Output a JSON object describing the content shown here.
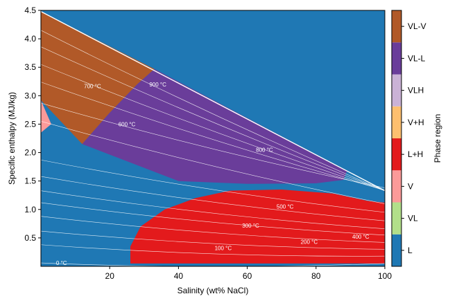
{
  "chart_data": {
    "type": "heatmap",
    "xlabel": "Salinity (wt% NaCl)",
    "ylabel": "Specific enthalpy (MJ/kg)",
    "xlim": [
      0,
      100
    ],
    "ylim": [
      0,
      4.5
    ],
    "xticks": [
      "20",
      "40",
      "60",
      "80",
      "100"
    ],
    "xtick_values": [
      20,
      40,
      60,
      80,
      100
    ],
    "yticks": [
      "0.5",
      "1.0",
      "1.5",
      "2.0",
      "2.5",
      "3.0",
      "3.5",
      "4.0",
      "4.5"
    ],
    "ytick_values": [
      0.5,
      1.0,
      1.5,
      2.0,
      2.5,
      3.0,
      3.5,
      4.0,
      4.5
    ],
    "colorbar": {
      "label": "Phase region",
      "categories": [
        {
          "name": "L",
          "color": "#1f78b4"
        },
        {
          "name": "VL",
          "color": "#b2df8a"
        },
        {
          "name": "V",
          "color": "#fb9a99"
        },
        {
          "name": "L+H",
          "color": "#e31a1c"
        },
        {
          "name": "V+H",
          "color": "#fdbf6f"
        },
        {
          "name": "VLH",
          "color": "#cab2d6"
        },
        {
          "name": "VL-L",
          "color": "#6a3d9a"
        },
        {
          "name": "VL-V",
          "color": "#b15928"
        }
      ]
    },
    "regions": [
      {
        "phase": "VL-V",
        "color": "#b15928",
        "boundary": [
          [
            0,
            4.48
          ],
          [
            33,
            3.47
          ],
          [
            28,
            3.2
          ],
          [
            20,
            2.7
          ],
          [
            12,
            2.15
          ],
          [
            0,
            2.92
          ]
        ]
      },
      {
        "phase": "VL-L",
        "color": "#6a3d9a",
        "boundary": [
          [
            33,
            3.47
          ],
          [
            89,
            1.68
          ],
          [
            88,
            1.52
          ],
          [
            80,
            1.46
          ],
          [
            60,
            1.45
          ],
          [
            40,
            1.5
          ],
          [
            12,
            2.15
          ],
          [
            20,
            2.7
          ],
          [
            28,
            3.2
          ]
        ]
      },
      {
        "phase": "V",
        "color": "#fb9a99",
        "boundary": [
          [
            0,
            2.92
          ],
          [
            3,
            2.5
          ],
          [
            0,
            2.35
          ]
        ]
      },
      {
        "phase": "L+H",
        "color": "#e31a1c",
        "boundary": [
          [
            26,
            0.05
          ],
          [
            100,
            0.05
          ],
          [
            100,
            1.12
          ],
          [
            95,
            1.15
          ],
          [
            85,
            1.28
          ],
          [
            70,
            1.35
          ],
          [
            55,
            1.33
          ],
          [
            45,
            1.2
          ],
          [
            36,
            1.0
          ],
          [
            29,
            0.7
          ],
          [
            26,
            0.35
          ]
        ]
      }
    ],
    "isotherms": [
      {
        "label": "0 °C",
        "label_at": [
          6,
          0.06
        ]
      },
      {
        "label": "100 °C",
        "label_at": [
          53,
          0.32
        ]
      },
      {
        "label": "200 °C",
        "label_at": [
          78,
          0.43
        ]
      },
      {
        "label": "300 °C",
        "label_at": [
          61,
          0.72
        ]
      },
      {
        "label": "400 °C",
        "label_at": [
          93,
          0.52
        ]
      },
      {
        "label": "500 °C",
        "label_at": [
          71,
          1.05
        ]
      },
      {
        "label": "600 °C",
        "label_at": [
          25,
          2.5
        ]
      },
      {
        "label": "700 °C",
        "label_at": [
          15,
          3.17
        ]
      },
      {
        "label": "800 °C",
        "label_at": [
          65,
          2.05
        ]
      },
      {
        "label": "900 °C",
        "label_at": [
          34,
          3.2
        ]
      }
    ]
  }
}
